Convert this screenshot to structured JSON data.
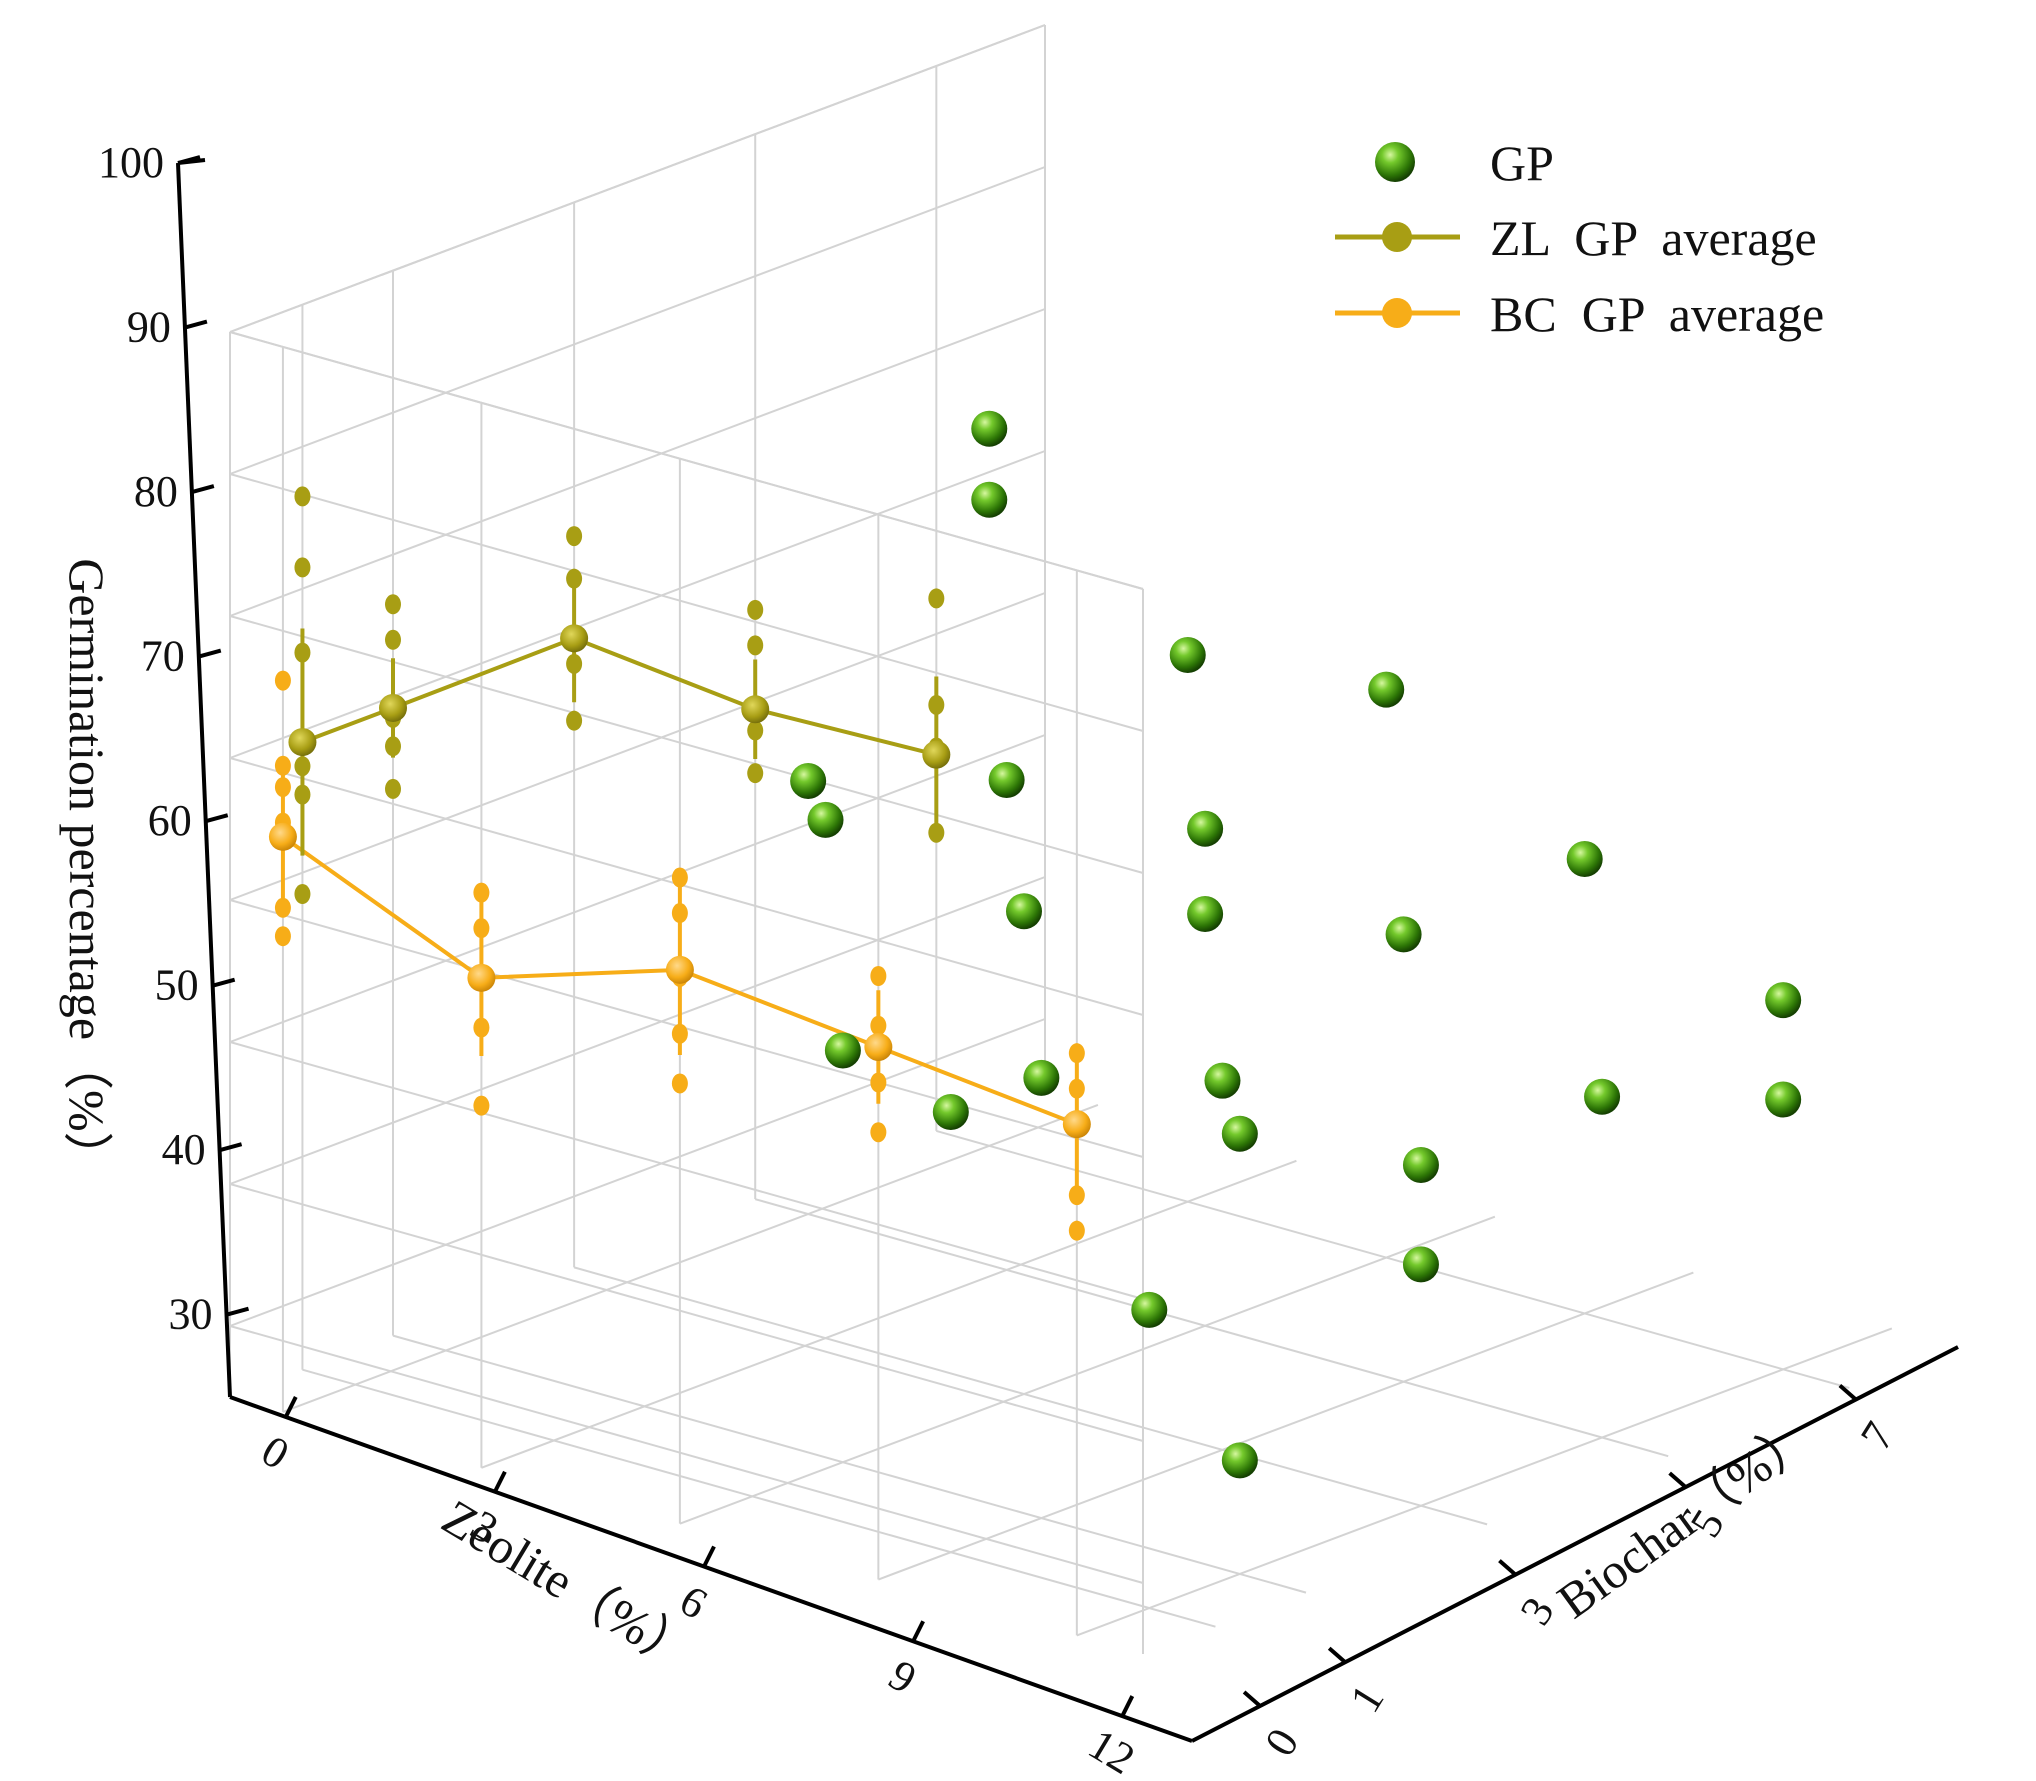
{
  "chart_data": {
    "type": "scatter",
    "projection": "3d",
    "z_axis": {
      "title": "Germination percentage（%）",
      "ticks": [
        "30",
        "40",
        "50",
        "60",
        "70",
        "80",
        "90",
        "100"
      ],
      "range": [
        25,
        100
      ]
    },
    "zeolite_axis": {
      "title": "Zeolite（%）",
      "ticks": [
        "0",
        "3",
        "6",
        "9",
        "12"
      ],
      "range": [
        -0.8,
        13
      ]
    },
    "biochar_axis": {
      "title": "Biochar（%）",
      "ticks": [
        "0",
        "1",
        "3",
        "5",
        "7"
      ],
      "tick_values": [
        0,
        1,
        3,
        5,
        7
      ],
      "range": [
        -0.8,
        8.2
      ]
    },
    "legend": {
      "placement": "top-right",
      "entries": [
        "GP",
        "ZL  GP  average",
        "BC  GP  average"
      ]
    },
    "colors": {
      "gp": "#3f8f0a",
      "gp_highlight": "#c9f58a",
      "zl": "#a89e14",
      "bc": "#f7ad18",
      "grid": "#d3d3d3"
    },
    "series": [
      {
        "name": "GP",
        "kind": "points",
        "note": "zeolite %, biochar position, germination %",
        "points": [
          {
            "zeolite": 0,
            "biochar": 7,
            "gp": 75.5
          },
          {
            "zeolite": 0,
            "biochar": 7,
            "gp": 70.5
          },
          {
            "zeolite": 0,
            "biochar": 5,
            "gp": 55.5
          },
          {
            "zeolite": 3,
            "biochar": 7,
            "gp": 63.5
          },
          {
            "zeolite": 3,
            "biochar": 5,
            "gp": 59.5
          },
          {
            "zeolite": 3,
            "biochar": 3,
            "gp": 61.5
          },
          {
            "zeolite": 6,
            "biochar": 7,
            "gp": 65
          },
          {
            "zeolite": 6,
            "biochar": 3,
            "gp": 59
          },
          {
            "zeolite": 6,
            "biochar": 1,
            "gp": 54
          },
          {
            "zeolite": 6,
            "biochar": 5,
            "gp": 60
          },
          {
            "zeolite": 6,
            "biochar": 5,
            "gp": 54
          },
          {
            "zeolite": 9,
            "biochar": 5,
            "gp": 56.5
          },
          {
            "zeolite": 9,
            "biochar": 1,
            "gp": 56
          },
          {
            "zeolite": 9,
            "biochar": 3,
            "gp": 51
          },
          {
            "zeolite": 9,
            "biochar": 0,
            "gp": 56
          },
          {
            "zeolite": 12,
            "biochar": 5,
            "gp": 49
          },
          {
            "zeolite": 12,
            "biochar": 3,
            "gp": 49
          },
          {
            "zeolite": 12,
            "biochar": 0,
            "gp": 46
          },
          {
            "zeolite": 9,
            "biochar": 7,
            "gp": 57
          },
          {
            "zeolite": 12,
            "biochar": 1,
            "gp": 56
          },
          {
            "zeolite": 12,
            "biochar": 7,
            "gp": 51
          },
          {
            "zeolite": 12,
            "biochar": 3,
            "gp": 42
          },
          {
            "zeolite": 12,
            "biochar": 7,
            "gp": 44
          },
          {
            "zeolite": 12,
            "biochar": 1,
            "gp": 33
          }
        ]
      },
      {
        "name": "ZL  GP  average",
        "kind": "line-errorbar",
        "plane": "back-right wall (zeolite = 0)",
        "x_axis": "biochar",
        "categories": [
          "0",
          "1",
          "3",
          "5",
          "7"
        ],
        "x": [
          0,
          1,
          3,
          5,
          7
        ],
        "values": [
          69.2,
          69.2,
          69.3,
          59.5,
          51.5
        ],
        "errors": [
          8.0,
          3.5,
          4.5,
          3.5,
          5.5
        ],
        "replicates": [
          [
            86.5,
            81.5,
            75.5,
            67.5,
            65.5,
            58.5
          ],
          [
            76.5,
            74.0,
            68.5,
            66.5,
            63.5
          ],
          [
            76.5,
            73.5,
            67.5,
            63.5
          ],
          [
            66.5,
            64.0,
            58.0,
            55.0
          ],
          [
            62.5,
            55.0,
            52.0,
            51.5,
            46.0
          ]
        ]
      },
      {
        "name": "BC  GP  average",
        "kind": "line-errorbar",
        "plane": "back-left wall (biochar = 7)",
        "x_axis": "zeolite",
        "categories": [
          "0",
          "3",
          "6",
          "9",
          "12"
        ],
        "x": [
          0,
          3,
          6,
          9,
          12
        ],
        "values": [
          65.5,
          59.5,
          64,
          62.5,
          61
        ],
        "errors": [
          5.0,
          5.5,
          6.0,
          4.0,
          5.5
        ],
        "replicates": [
          [
            76.5,
            70.5,
            69.0,
            66.5,
            60.5,
            58.5
          ],
          [
            65.5,
            63.0,
            59.5,
            56.0,
            50.5
          ],
          [
            70.5,
            68.0,
            63.5,
            59.5,
            56.0
          ],
          [
            67.5,
            64.0,
            60.0,
            56.5
          ],
          [
            66.0,
            63.5,
            56.0,
            53.5
          ]
        ]
      }
    ]
  }
}
